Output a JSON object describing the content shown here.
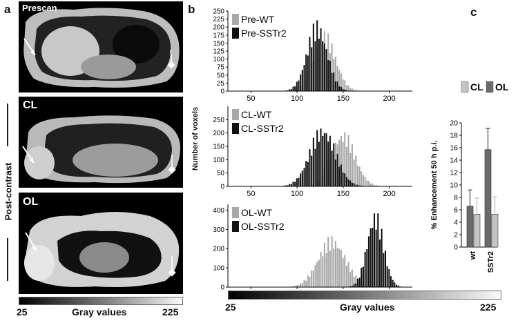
{
  "panels": {
    "a": {
      "letter": "a",
      "images": [
        "Prescan",
        "CL",
        "OL"
      ],
      "side_label": "Post-contrast",
      "colorbar": {
        "min": "25",
        "max": "225",
        "label": "Gray values"
      }
    },
    "b": {
      "letter": "b",
      "ylabel": "Number of voxels",
      "colorbar": {
        "min": "25",
        "max": "225",
        "label": "Gray values"
      }
    },
    "c": {
      "letter": "c"
    }
  },
  "chart_data": [
    {
      "type": "bar",
      "id": "hist-pre",
      "x_ticks": [
        50,
        100,
        150,
        200
      ],
      "xlim": [
        25,
        225
      ],
      "y_ticks": [
        0,
        25,
        50,
        75,
        100,
        125,
        150,
        175,
        200,
        225,
        250
      ],
      "ylim": [
        0,
        250
      ],
      "series": [
        {
          "name": "Pre-WT",
          "color": "#a8a8a8",
          "center": 130,
          "sd": 12,
          "peak": 190
        },
        {
          "name": "Pre-SSTr2",
          "color": "#111111",
          "center": 122,
          "sd": 11,
          "peak": 225
        }
      ]
    },
    {
      "type": "bar",
      "id": "hist-cl",
      "x_ticks": [
        50,
        100,
        150,
        200
      ],
      "xlim": [
        25,
        225
      ],
      "y_ticks": [
        0,
        50,
        100,
        150,
        200,
        250
      ],
      "ylim": [
        0,
        300
      ],
      "series": [
        {
          "name": "CL-WT",
          "color": "#a8a8a8",
          "center": 150,
          "sd": 13,
          "peak": 215
        },
        {
          "name": "CL-SSTr2",
          "color": "#111111",
          "center": 128,
          "sd": 14,
          "peak": 235
        }
      ]
    },
    {
      "type": "bar",
      "id": "hist-ol",
      "x_ticks": [
        50,
        100,
        150,
        200
      ],
      "xlim": [
        25,
        225
      ],
      "y_ticks": [
        0,
        100,
        200,
        300,
        400
      ],
      "ylim": [
        0,
        430
      ],
      "series": [
        {
          "name": "OL-WT",
          "color": "#a8a8a8",
          "center": 138,
          "sd": 15,
          "peak": 270
        },
        {
          "name": "OL-SSTr2",
          "color": "#111111",
          "center": 185,
          "sd": 9,
          "peak": 410
        }
      ]
    },
    {
      "type": "bar",
      "id": "enhancement",
      "ylabel": "% Enhancement 50 h p.i.",
      "categories": [
        "wt",
        "SSTr2"
      ],
      "y_ticks": [
        0,
        2,
        4,
        6,
        8,
        10,
        12,
        14,
        16,
        18,
        20
      ],
      "ylim": [
        0,
        20
      ],
      "series": [
        {
          "name": "OL",
          "color": "#6a6a6a",
          "values": [
            6.6,
            15.7
          ],
          "errors": [
            2.6,
            3.4
          ]
        },
        {
          "name": "CL",
          "color": "#c4c4c4",
          "values": [
            5.3,
            5.3
          ],
          "errors": [
            2.6,
            2.8
          ]
        }
      ]
    }
  ]
}
